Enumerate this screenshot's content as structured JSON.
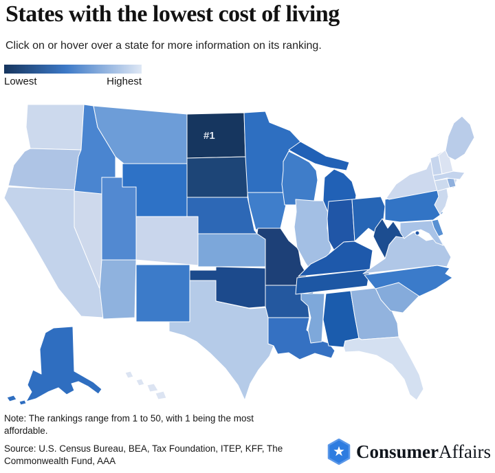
{
  "header": {
    "title": "States with the lowest cost of living",
    "subtitle": "Click on or hover over a state for more information on its ranking."
  },
  "legend": {
    "low_label": "Lowest",
    "high_label": "Highest",
    "gradient_start": "#16355e",
    "gradient_mid": "#3d79c7",
    "gradient_end": "#dfe8f5"
  },
  "map": {
    "annotation": {
      "text": "#1",
      "state": "North Dakota"
    },
    "states": [
      {
        "abbr": "WA",
        "name": "Washington",
        "fill": "#ccd9ed"
      },
      {
        "abbr": "OR",
        "name": "Oregon",
        "fill": "#aec4e5"
      },
      {
        "abbr": "CA",
        "name": "California",
        "fill": "#c3d3eb"
      },
      {
        "abbr": "NV",
        "name": "Nevada",
        "fill": "#ced9ec"
      },
      {
        "abbr": "ID",
        "name": "Idaho",
        "fill": "#4a85d0"
      },
      {
        "abbr": "MT",
        "name": "Montana",
        "fill": "#6d9dd8"
      },
      {
        "abbr": "WY",
        "name": "Wyoming",
        "fill": "#2e72c6"
      },
      {
        "abbr": "UT",
        "name": "Utah",
        "fill": "#5289d1"
      },
      {
        "abbr": "CO",
        "name": "Colorado",
        "fill": "#c9d6ec"
      },
      {
        "abbr": "AZ",
        "name": "Arizona",
        "fill": "#8fb2de"
      },
      {
        "abbr": "NM",
        "name": "New Mexico",
        "fill": "#3c7bc9"
      },
      {
        "abbr": "ND",
        "name": "North Dakota",
        "fill": "#16365f"
      },
      {
        "abbr": "SD",
        "name": "South Dakota",
        "fill": "#1d4577"
      },
      {
        "abbr": "NE",
        "name": "Nebraska",
        "fill": "#2d68b6"
      },
      {
        "abbr": "KS",
        "name": "Kansas",
        "fill": "#7ca7da"
      },
      {
        "abbr": "OK",
        "name": "Oklahoma",
        "fill": "#1c4a8c"
      },
      {
        "abbr": "TX",
        "name": "Texas",
        "fill": "#b5cbe8"
      },
      {
        "abbr": "MN",
        "name": "Minnesota",
        "fill": "#2e6fc1"
      },
      {
        "abbr": "IA",
        "name": "Iowa",
        "fill": "#3f7ecb"
      },
      {
        "abbr": "MO",
        "name": "Missouri",
        "fill": "#1d4077"
      },
      {
        "abbr": "AR",
        "name": "Arkansas",
        "fill": "#24589f"
      },
      {
        "abbr": "LA",
        "name": "Louisiana",
        "fill": "#3571c2"
      },
      {
        "abbr": "WI",
        "name": "Wisconsin",
        "fill": "#3f7dc9"
      },
      {
        "abbr": "IL",
        "name": "Illinois",
        "fill": "#a3bfe4"
      },
      {
        "abbr": "MI",
        "name": "Michigan",
        "fill": "#2161b6"
      },
      {
        "abbr": "IN",
        "name": "Indiana",
        "fill": "#2056a7"
      },
      {
        "abbr": "OH",
        "name": "Ohio",
        "fill": "#2665b5"
      },
      {
        "abbr": "KY",
        "name": "Kentucky",
        "fill": "#1e59ab"
      },
      {
        "abbr": "TN",
        "name": "Tennessee",
        "fill": "#1d57a4"
      },
      {
        "abbr": "MS",
        "name": "Mississippi",
        "fill": "#7ea8da"
      },
      {
        "abbr": "AL",
        "name": "Alabama",
        "fill": "#1b5cad"
      },
      {
        "abbr": "GA",
        "name": "Georgia",
        "fill": "#92b3de"
      },
      {
        "abbr": "FL",
        "name": "Florida",
        "fill": "#d4e0f1"
      },
      {
        "abbr": "SC",
        "name": "South Carolina",
        "fill": "#85abdb"
      },
      {
        "abbr": "NC",
        "name": "North Carolina",
        "fill": "#3b7bca"
      },
      {
        "abbr": "VA",
        "name": "Virginia",
        "fill": "#b0c7e7"
      },
      {
        "abbr": "WV",
        "name": "West Virginia",
        "fill": "#1c4d90"
      },
      {
        "abbr": "PA",
        "name": "Pennsylvania",
        "fill": "#3274c5"
      },
      {
        "abbr": "NY",
        "name": "New York",
        "fill": "#cdd9ee"
      },
      {
        "abbr": "NJ",
        "name": "New Jersey",
        "fill": "#cbd9ee"
      },
      {
        "abbr": "DE",
        "name": "Delaware",
        "fill": "#5890d3"
      },
      {
        "abbr": "MD",
        "name": "Maryland",
        "fill": "#a9c3e7"
      },
      {
        "abbr": "CT",
        "name": "Connecticut",
        "fill": "#ccdaee"
      },
      {
        "abbr": "RI",
        "name": "Rhode Island",
        "fill": "#8fb0dd"
      },
      {
        "abbr": "MA",
        "name": "Massachusetts",
        "fill": "#c4d4ed"
      },
      {
        "abbr": "VT",
        "name": "Vermont",
        "fill": "#c6d5ed"
      },
      {
        "abbr": "NH",
        "name": "New Hampshire",
        "fill": "#dbe3f2"
      },
      {
        "abbr": "ME",
        "name": "Maine",
        "fill": "#b9cce9"
      },
      {
        "abbr": "DC",
        "name": "District of Columbia",
        "fill": "#2056a7"
      },
      {
        "abbr": "AK",
        "name": "Alaska",
        "fill": "#2f6ec0"
      },
      {
        "abbr": "HI",
        "name": "Hawaii",
        "fill": "#dce4f2"
      }
    ]
  },
  "footer": {
    "note": "Note: The rankings range from 1 to 50, with 1 being the most affordable.",
    "source": "Source: U.S. Census Bureau, BEA, Tax Foundation, ITEP, KFF, The Commonwealth Fund, AAA"
  },
  "logo": {
    "brand_bold": "Consumer",
    "brand_light": "Affairs",
    "badge_color": "#2e7ce0",
    "badge_ring_color": "#5a97e8",
    "star_icon": "star"
  }
}
